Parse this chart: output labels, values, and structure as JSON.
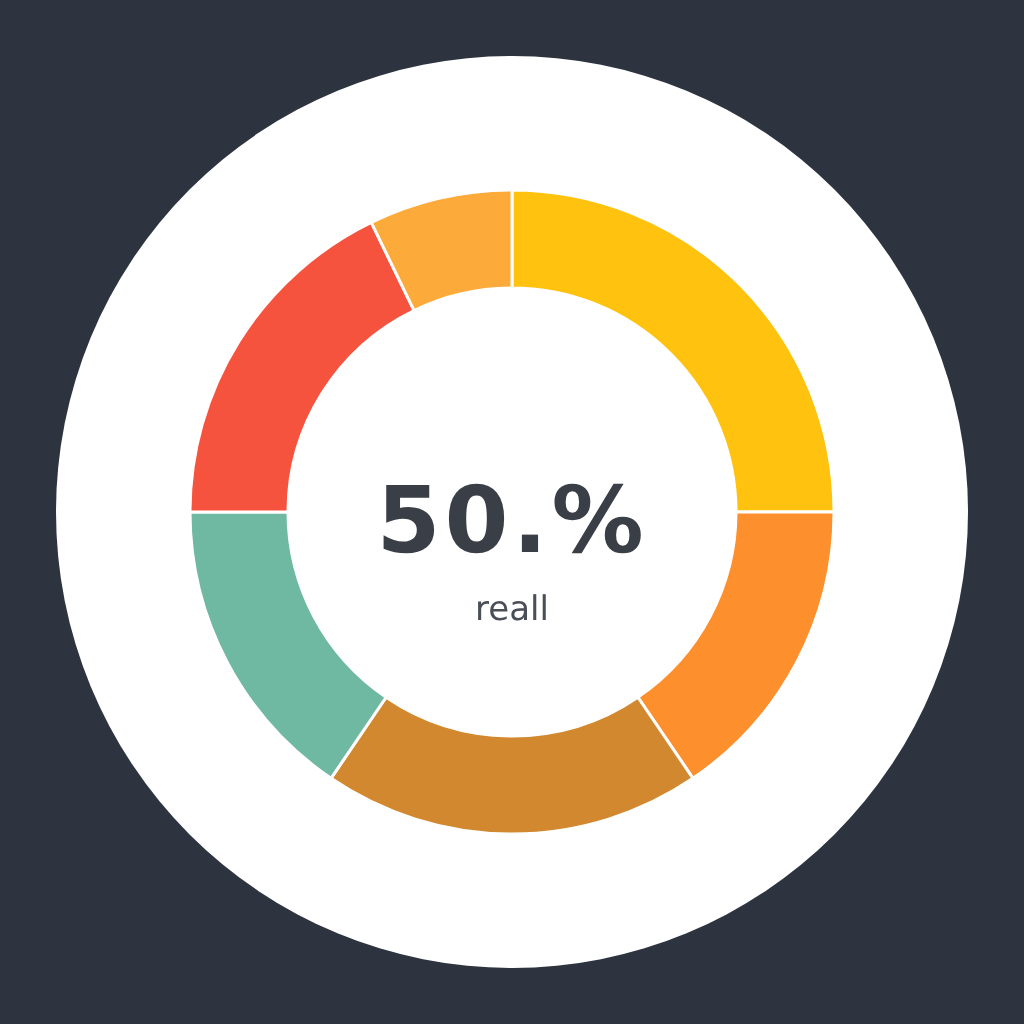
{
  "chart_data": {
    "type": "donut",
    "categories": [
      null,
      null,
      null,
      null,
      null,
      null
    ],
    "values": [
      25,
      15.5,
      19,
      15.5,
      17.8,
      7.2
    ],
    "colors": [
      "#fec20f",
      "#fd8f2d",
      "#d2882e",
      "#6fb8a2",
      "#f6533f",
      "#fcab3b"
    ],
    "annotations": [
      "50.%",
      "reall"
    ]
  }
}
